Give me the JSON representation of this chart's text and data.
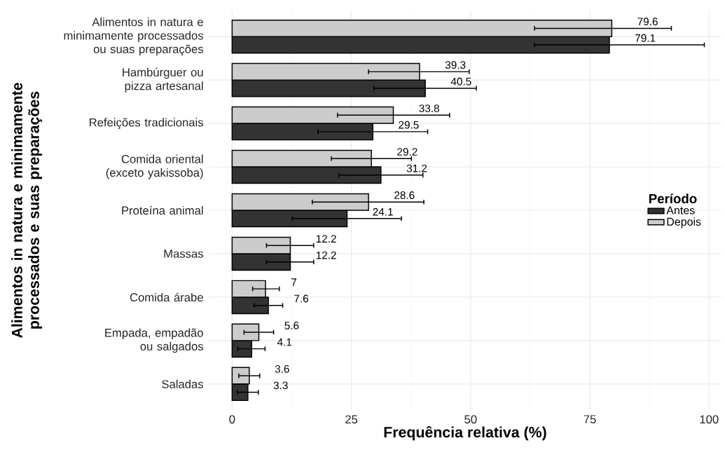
{
  "chart_data": {
    "type": "bar",
    "orientation": "horizontal",
    "xlabel": "Frequência relativa (%)",
    "ylabel": "Alimentos in natura e minimamente processados e suas preparações",
    "legend_title": "Período",
    "legend": "right",
    "grid": true,
    "data_labels": true,
    "categories": [
      "Alimentos in natura e minimamente processados ou suas preparações",
      "Hambúrguer ou pizza artesanal",
      "Refeições tradicionais",
      "Comida oriental (exceto yakissoba)",
      "Proteína animal",
      "Massas",
      "Comida árabe",
      "Empada, empadão ou salgados",
      "Saladas"
    ],
    "xlim": [
      -4.9,
      102.6
    ],
    "xticks": [
      0,
      25,
      50,
      75,
      100
    ],
    "series": [
      {
        "name": "Antes",
        "color": "#333333",
        "values": [
          79.1,
          40.5,
          29.5,
          31.2,
          24.1,
          12.2,
          7.6,
          4.1,
          3.3
        ],
        "errors": [
          [
            63.4,
            99.0
          ],
          [
            29.7,
            51.2
          ],
          [
            18.0,
            41.0
          ],
          [
            22.4,
            40.0
          ],
          [
            12.6,
            35.5
          ],
          [
            7.2,
            17.1
          ],
          [
            4.6,
            10.6
          ],
          [
            1.2,
            6.9
          ],
          [
            1.1,
            5.5
          ]
        ]
      },
      {
        "name": "Depois",
        "color": "#cccccc",
        "values": [
          79.6,
          39.3,
          33.8,
          29.2,
          28.6,
          12.2,
          7,
          5.6,
          3.6
        ],
        "errors": [
          [
            63.4,
            92.1
          ],
          [
            28.6,
            49.7
          ],
          [
            22.1,
            45.6
          ],
          [
            20.8,
            37.6
          ],
          [
            16.8,
            40.2
          ],
          [
            7.2,
            17.1
          ],
          [
            4.3,
            9.9
          ],
          [
            2.5,
            8.7
          ],
          [
            1.4,
            5.8
          ]
        ]
      }
    ]
  }
}
